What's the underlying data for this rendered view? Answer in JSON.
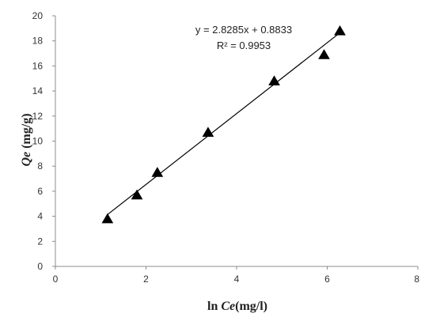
{
  "chart_data": {
    "type": "scatter",
    "title": "",
    "xlabel_prefix": "ln ",
    "xlabel_italic": "Ce",
    "xlabel_suffix": "(mg/l)",
    "ylabel_italic": "Qe",
    "ylabel_suffix": " (mg/g)",
    "xlim": [
      0,
      8
    ],
    "ylim": [
      0,
      20
    ],
    "x_ticks": [
      "0",
      "2",
      "4",
      "6",
      "8"
    ],
    "y_ticks": [
      "0",
      "2",
      "4",
      "6",
      "8",
      "10",
      "12",
      "14",
      "16",
      "18",
      "20"
    ],
    "grid": false,
    "legend": "none",
    "marker": "triangle",
    "marker_color": "#000000",
    "line_color": "#000000",
    "series": [
      {
        "x": [
          1.15,
          1.8,
          2.25,
          3.37,
          4.83,
          5.93,
          6.28
        ],
        "y": [
          3.8,
          5.7,
          7.5,
          10.7,
          14.8,
          16.9,
          18.8
        ]
      }
    ],
    "trendline": {
      "slope": 2.8285,
      "intercept": 0.8833,
      "x_range": [
        1.15,
        6.28
      ],
      "equation": "y = 2.8285x + 0.8833",
      "r2": "R² = 0.9953"
    }
  }
}
